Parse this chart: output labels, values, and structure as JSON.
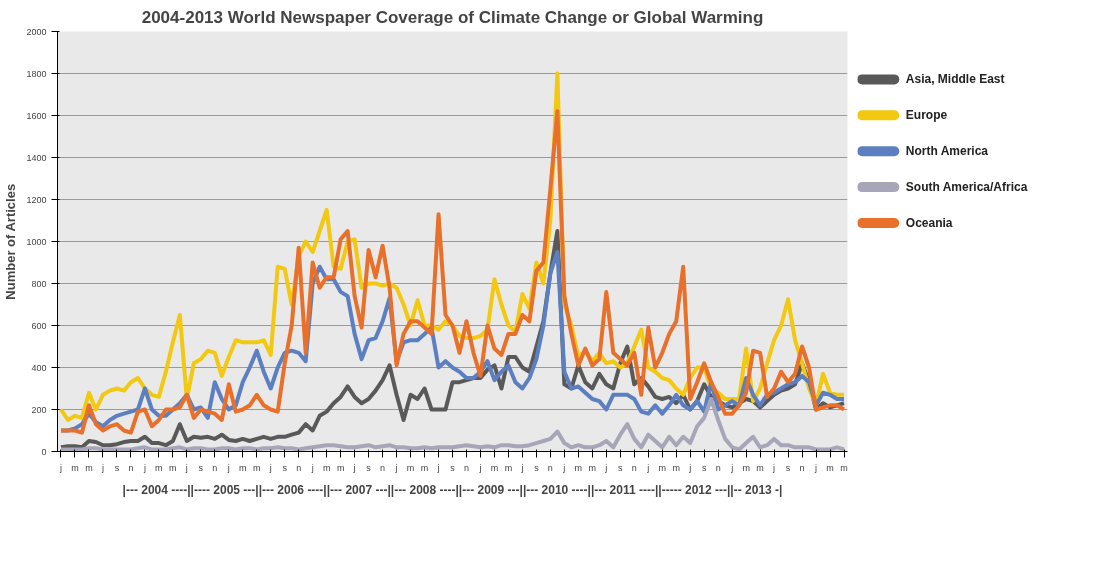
{
  "chart_data": {
    "type": "line",
    "title": "2004-2013 World Newspaper Coverage of Climate Change or Global Warming",
    "ylabel": "Number of Articles",
    "categories": [
      "j",
      null,
      "m",
      null,
      "m",
      null,
      "j",
      null,
      "s",
      null,
      "n",
      null,
      "j",
      null,
      "m",
      null,
      "m",
      null,
      "j",
      null,
      "s",
      null,
      "n",
      null,
      "j",
      null,
      "m",
      null,
      "m",
      null,
      "j",
      null,
      "s",
      null,
      "n",
      null,
      "j",
      null,
      "m",
      null,
      "m",
      null,
      "j",
      null,
      "s",
      null,
      "n",
      null,
      "j",
      null,
      "m",
      null,
      "m",
      null,
      "j",
      null,
      "s",
      null,
      "n",
      null,
      "j",
      null,
      "m",
      null,
      "m",
      null,
      "j",
      null,
      "s",
      null,
      "n",
      null,
      "j",
      null,
      "m",
      null,
      "m",
      null,
      "j",
      null,
      "s",
      null,
      "n",
      null,
      "j",
      null,
      "m",
      null,
      "m",
      null,
      "j",
      null,
      "s",
      null,
      "n",
      null,
      "j",
      null,
      "m",
      null,
      "m",
      null,
      "j",
      null,
      "s",
      null,
      "n",
      null,
      "j",
      null,
      "m",
      null,
      "m"
    ],
    "series": [
      {
        "name": "Asia, Middle East",
        "color": "#595959",
        "values": [
          20,
          25,
          25,
          20,
          50,
          45,
          30,
          30,
          35,
          45,
          50,
          50,
          70,
          40,
          40,
          30,
          50,
          130,
          50,
          70,
          65,
          70,
          60,
          80,
          55,
          50,
          60,
          50,
          60,
          70,
          60,
          70,
          70,
          80,
          90,
          130,
          100,
          170,
          190,
          230,
          260,
          310,
          260,
          230,
          250,
          290,
          340,
          410,
          270,
          150,
          270,
          250,
          300,
          200,
          200,
          200,
          330,
          330,
          340,
          350,
          350,
          390,
          410,
          300,
          450,
          450,
          400,
          380,
          500,
          620,
          850,
          1050,
          320,
          300,
          410,
          330,
          300,
          370,
          320,
          300,
          420,
          500,
          320,
          350,
          310,
          260,
          250,
          260,
          230,
          270,
          200,
          240,
          320,
          260,
          240,
          220,
          210,
          230,
          250,
          240,
          210,
          240,
          270,
          290,
          300,
          320,
          420,
          330,
          200,
          230,
          210,
          220,
          230
        ]
      },
      {
        "name": "Europe",
        "color": "#f2c811",
        "values": [
          200,
          150,
          170,
          160,
          280,
          200,
          270,
          290,
          300,
          290,
          330,
          350,
          300,
          270,
          260,
          380,
          520,
          650,
          250,
          420,
          440,
          480,
          470,
          360,
          450,
          530,
          520,
          520,
          520,
          530,
          460,
          880,
          870,
          700,
          930,
          1000,
          950,
          1050,
          1150,
          880,
          870,
          1000,
          1010,
          780,
          800,
          800,
          790,
          800,
          780,
          700,
          600,
          720,
          600,
          600,
          580,
          620,
          600,
          550,
          540,
          540,
          550,
          580,
          820,
          700,
          600,
          570,
          750,
          680,
          900,
          800,
          1100,
          1800,
          700,
          600,
          450,
          480,
          430,
          470,
          420,
          430,
          400,
          420,
          500,
          580,
          400,
          380,
          350,
          340,
          300,
          270,
          350,
          400,
          400,
          300,
          280,
          250,
          250,
          250,
          490,
          240,
          300,
          420,
          530,
          600,
          725,
          530,
          420,
          300,
          220,
          370,
          280,
          270,
          270
        ]
      },
      {
        "name": "North America",
        "color": "#5b7fc1",
        "values": [
          100,
          100,
          110,
          130,
          180,
          140,
          120,
          150,
          170,
          180,
          190,
          200,
          300,
          200,
          170,
          170,
          200,
          230,
          270,
          200,
          210,
          160,
          330,
          250,
          200,
          220,
          330,
          400,
          480,
          380,
          300,
          400,
          470,
          480,
          470,
          430,
          800,
          880,
          820,
          820,
          760,
          740,
          560,
          440,
          530,
          540,
          620,
          730,
          430,
          520,
          530,
          530,
          560,
          590,
          400,
          430,
          400,
          380,
          350,
          350,
          380,
          430,
          340,
          380,
          410,
          330,
          300,
          350,
          440,
          600,
          850,
          950,
          380,
          300,
          310,
          280,
          250,
          240,
          200,
          270,
          270,
          270,
          250,
          190,
          180,
          220,
          180,
          220,
          270,
          220,
          200,
          240,
          190,
          330,
          200,
          220,
          240,
          220,
          350,
          270,
          220,
          270,
          280,
          300,
          320,
          330,
          360,
          330,
          220,
          280,
          270,
          250,
          250
        ]
      },
      {
        "name": "South America/Africa",
        "color": "#a6a6b8",
        "values": [
          10,
          10,
          10,
          10,
          15,
          15,
          10,
          10,
          10,
          10,
          10,
          15,
          20,
          10,
          10,
          10,
          15,
          20,
          10,
          15,
          15,
          10,
          10,
          15,
          15,
          10,
          15,
          15,
          10,
          15,
          15,
          20,
          15,
          15,
          10,
          15,
          20,
          25,
          30,
          30,
          25,
          20,
          20,
          25,
          30,
          20,
          25,
          30,
          20,
          20,
          15,
          15,
          20,
          15,
          20,
          20,
          20,
          25,
          30,
          25,
          20,
          25,
          20,
          30,
          30,
          25,
          25,
          30,
          40,
          50,
          60,
          95,
          40,
          20,
          30,
          20,
          20,
          30,
          50,
          20,
          80,
          130,
          60,
          20,
          80,
          50,
          20,
          70,
          30,
          70,
          40,
          120,
          160,
          250,
          150,
          60,
          20,
          10,
          40,
          70,
          20,
          30,
          60,
          30,
          30,
          20,
          20,
          20,
          10,
          10,
          10,
          20,
          10
        ]
      },
      {
        "name": "Oceania",
        "color": "#e8702a",
        "values": [
          100,
          100,
          100,
          90,
          220,
          130,
          100,
          120,
          130,
          100,
          90,
          190,
          200,
          120,
          150,
          200,
          200,
          210,
          270,
          160,
          200,
          190,
          180,
          150,
          320,
          190,
          200,
          220,
          270,
          220,
          200,
          190,
          420,
          600,
          970,
          470,
          900,
          780,
          830,
          830,
          1010,
          1050,
          740,
          590,
          960,
          830,
          980,
          780,
          410,
          560,
          620,
          620,
          590,
          560,
          1130,
          650,
          600,
          470,
          620,
          470,
          360,
          600,
          490,
          460,
          560,
          560,
          650,
          620,
          860,
          900,
          1250,
          1620,
          740,
          560,
          410,
          490,
          410,
          440,
          760,
          470,
          440,
          410,
          470,
          270,
          590,
          400,
          470,
          560,
          620,
          880,
          250,
          330,
          420,
          330,
          260,
          180,
          180,
          220,
          280,
          480,
          470,
          260,
          300,
          380,
          330,
          370,
          500,
          400,
          200,
          210,
          220,
          220,
          200
        ]
      }
    ],
    "ylim": [
      0,
      2000
    ],
    "yticks": [
      0,
      200,
      400,
      600,
      800,
      1000,
      1200,
      1400,
      1600,
      1800,
      2000
    ],
    "grid": "y",
    "legend": "right",
    "line_style": "solid",
    "annotations": [
      "|--- 2004 ----||---- 2005 ---||--- 2006 ----||--- 2007 ---||--- 2008 ----||--- 2009 ---||--- 2010 ----||--- 2011 ----||----- 2012 ---||-- 2013 -|"
    ]
  }
}
